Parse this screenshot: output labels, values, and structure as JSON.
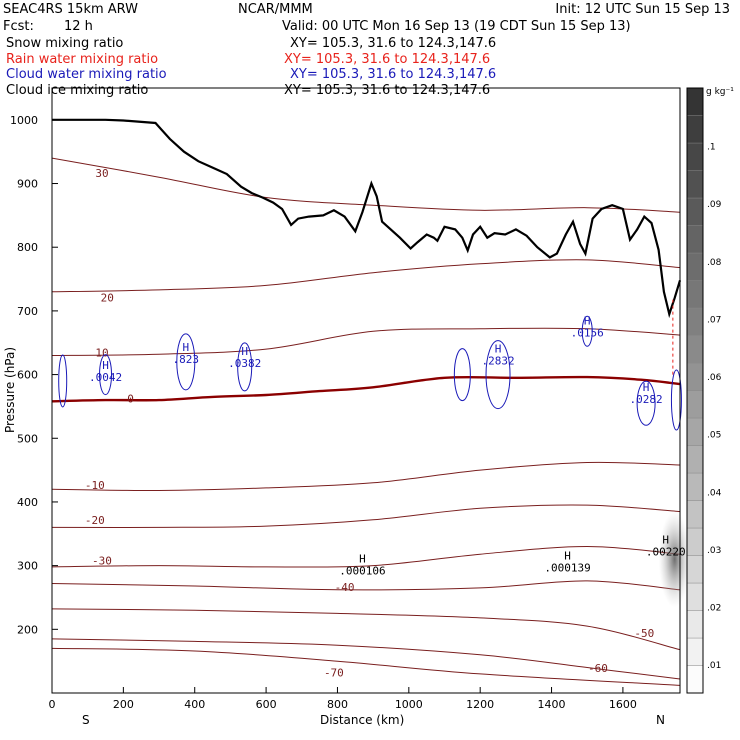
{
  "header": {
    "model": "SEAC4RS 15km ARW",
    "org": "NCAR/MMM",
    "init": "Init: 12 UTC Sun 15 Sep 13",
    "fcst_label": "Fcst:",
    "fcst_value": "12 h",
    "valid": "Valid: 00 UTC Mon 16 Sep 13 (19 CDT Sun 15 Sep 13)"
  },
  "fields": [
    {
      "label": "Snow mixing ratio",
      "xy": "XY= 105.3, 31.6 to 124.3,147.6",
      "color": "#000000"
    },
    {
      "label": "Rain water mixing ratio",
      "xy": "XY= 105.3, 31.6 to 124.3,147.6",
      "color": "#e8231c"
    },
    {
      "label": "Cloud water mixing ratio",
      "xy": "XY= 105.3, 31.6 to 124.3,147.6",
      "color": "#1a1ab8"
    },
    {
      "label": "Cloud ice mixing ratio",
      "xy": "XY= 105.3, 31.6 to 124.3,147.6",
      "color": "#000000"
    }
  ],
  "chart_data": {
    "type": "cross-section contour",
    "xlabel": "Distance (km)",
    "ylabel": "Pressure (hPa)",
    "xlim": [
      0,
      1760
    ],
    "ylim": [
      1050,
      100
    ],
    "x_ticks": [
      0,
      200,
      400,
      600,
      800,
      1000,
      1200,
      1400,
      1600
    ],
    "y_ticks": [
      200,
      300,
      400,
      500,
      600,
      700,
      800,
      900,
      1000
    ],
    "end_labels": {
      "left": "S",
      "right": "N"
    },
    "colorbar": {
      "unit": "g kg⁻¹",
      "ticks": [
        ".01",
        ".02",
        ".03",
        ".04",
        ".05",
        ".06",
        ".07",
        ".08",
        ".09",
        ".1"
      ],
      "min": 0.005,
      "max": 0.11
    },
    "terrain": [
      [
        0,
        1000
      ],
      [
        40,
        1000
      ],
      [
        150,
        1000
      ],
      [
        200,
        999
      ],
      [
        290,
        995
      ],
      [
        330,
        970
      ],
      [
        370,
        950
      ],
      [
        410,
        935
      ],
      [
        450,
        925
      ],
      [
        490,
        915
      ],
      [
        530,
        895
      ],
      [
        560,
        885
      ],
      [
        590,
        878
      ],
      [
        620,
        870
      ],
      [
        645,
        860
      ],
      [
        670,
        835
      ],
      [
        690,
        845
      ],
      [
        720,
        848
      ],
      [
        760,
        850
      ],
      [
        790,
        858
      ],
      [
        820,
        848
      ],
      [
        850,
        825
      ],
      [
        870,
        855
      ],
      [
        895,
        900
      ],
      [
        910,
        880
      ],
      [
        925,
        840
      ],
      [
        945,
        830
      ],
      [
        975,
        815
      ],
      [
        1005,
        798
      ],
      [
        1025,
        808
      ],
      [
        1050,
        820
      ],
      [
        1070,
        815
      ],
      [
        1080,
        810
      ],
      [
        1100,
        832
      ],
      [
        1130,
        828
      ],
      [
        1150,
        815
      ],
      [
        1165,
        795
      ],
      [
        1180,
        820
      ],
      [
        1200,
        832
      ],
      [
        1220,
        815
      ],
      [
        1240,
        822
      ],
      [
        1270,
        820
      ],
      [
        1300,
        828
      ],
      [
        1330,
        818
      ],
      [
        1360,
        800
      ],
      [
        1395,
        784
      ],
      [
        1415,
        790
      ],
      [
        1440,
        820
      ],
      [
        1460,
        840
      ],
      [
        1480,
        805
      ],
      [
        1495,
        790
      ],
      [
        1515,
        845
      ],
      [
        1540,
        860
      ],
      [
        1570,
        866
      ],
      [
        1600,
        860
      ],
      [
        1620,
        812
      ],
      [
        1640,
        828
      ],
      [
        1660,
        848
      ],
      [
        1680,
        838
      ],
      [
        1700,
        796
      ],
      [
        1715,
        730
      ],
      [
        1730,
        695
      ],
      [
        1745,
        720
      ],
      [
        1760,
        748
      ]
    ],
    "temperature_contours": [
      {
        "value": -70,
        "label": "-70",
        "label_at": [
          790,
          126
        ],
        "points": [
          [
            0,
            170
          ],
          [
            400,
            166
          ],
          [
            800,
            150
          ],
          [
            1200,
            130
          ],
          [
            1760,
            112
          ]
        ]
      },
      {
        "value": -60,
        "label": "-60",
        "label_at": [
          1530,
          133
        ],
        "points": [
          [
            0,
            185
          ],
          [
            400,
            181
          ],
          [
            800,
            175
          ],
          [
            1200,
            160
          ],
          [
            1500,
            140
          ],
          [
            1760,
            122
          ]
        ]
      },
      {
        "value": -50,
        "label": "-50",
        "label_at": [
          1660,
          188
        ],
        "points": [
          [
            0,
            232
          ],
          [
            400,
            230
          ],
          [
            800,
            225
          ],
          [
            1200,
            218
          ],
          [
            1500,
            205
          ],
          [
            1760,
            168
          ]
        ]
      },
      {
        "value": -40,
        "label": "-40",
        "label_at": [
          820,
          260
        ],
        "points": [
          [
            0,
            272
          ],
          [
            400,
            268
          ],
          [
            800,
            262
          ],
          [
            1200,
            265
          ],
          [
            1500,
            276
          ],
          [
            1760,
            262
          ]
        ]
      },
      {
        "value": -30,
        "label": "-30",
        "label_at": [
          140,
          302
        ],
        "points": [
          [
            0,
            298
          ],
          [
            300,
            300
          ],
          [
            600,
            298
          ],
          [
            900,
            300
          ],
          [
            1200,
            318
          ],
          [
            1500,
            330
          ],
          [
            1760,
            318
          ]
        ]
      },
      {
        "value": -20,
        "label": "-20",
        "label_at": [
          120,
          365
        ],
        "points": [
          [
            0,
            360
          ],
          [
            300,
            360
          ],
          [
            600,
            362
          ],
          [
            900,
            372
          ],
          [
            1200,
            390
          ],
          [
            1500,
            395
          ],
          [
            1760,
            385
          ]
        ]
      },
      {
        "value": -10,
        "label": "-10",
        "label_at": [
          120,
          420
        ],
        "points": [
          [
            0,
            420
          ],
          [
            300,
            418
          ],
          [
            600,
            422
          ],
          [
            900,
            430
          ],
          [
            1200,
            450
          ],
          [
            1500,
            462
          ],
          [
            1760,
            458
          ]
        ]
      },
      {
        "value": 0,
        "label": "0",
        "label_at": [
          220,
          556
        ],
        "points": [
          [
            0,
            558
          ],
          [
            150,
            560
          ],
          [
            300,
            560
          ],
          [
            450,
            565
          ],
          [
            600,
            568
          ],
          [
            750,
            574
          ],
          [
            900,
            580
          ],
          [
            1100,
            595
          ],
          [
            1300,
            595
          ],
          [
            1500,
            596
          ],
          [
            1650,
            592
          ],
          [
            1760,
            585
          ]
        ]
      },
      {
        "value": 10,
        "label": "10",
        "label_at": [
          140,
          628
        ],
        "points": [
          [
            0,
            630
          ],
          [
            300,
            632
          ],
          [
            600,
            640
          ],
          [
            900,
            668
          ],
          [
            1200,
            672
          ],
          [
            1500,
            672
          ],
          [
            1760,
            662
          ]
        ]
      },
      {
        "value": 20,
        "label": "20",
        "label_at": [
          155,
          715
        ],
        "points": [
          [
            0,
            730
          ],
          [
            300,
            733
          ],
          [
            600,
            740
          ],
          [
            900,
            760
          ],
          [
            1200,
            774
          ],
          [
            1500,
            780
          ],
          [
            1760,
            768
          ]
        ]
      },
      {
        "value": 30,
        "label": "30",
        "label_at": [
          140,
          910
        ],
        "points": [
          [
            0,
            940
          ],
          [
            300,
            910
          ],
          [
            600,
            878
          ],
          [
            900,
            866
          ],
          [
            1200,
            858
          ],
          [
            1500,
            862
          ],
          [
            1760,
            855
          ]
        ]
      }
    ],
    "cloud_water_maxima": [
      {
        "label": ".0042",
        "at": [
          150,
          590
        ]
      },
      {
        "label": ".823",
        "at": [
          375,
          618
        ]
      },
      {
        "label": ".0382",
        "at": [
          540,
          612
        ]
      },
      {
        "label": ".2832",
        "at": [
          1250,
          616
        ]
      },
      {
        "label": ".0156",
        "at": [
          1500,
          660
        ]
      },
      {
        "label": ".0282",
        "at": [
          1665,
          555
        ]
      }
    ],
    "cloud_ice_maxima": [
      {
        "label": ".000106",
        "at": [
          870,
          286
        ]
      },
      {
        "label": ".000139",
        "at": [
          1445,
          291
        ]
      },
      {
        "label": ".00220",
        "at": [
          1720,
          316
        ]
      }
    ]
  }
}
